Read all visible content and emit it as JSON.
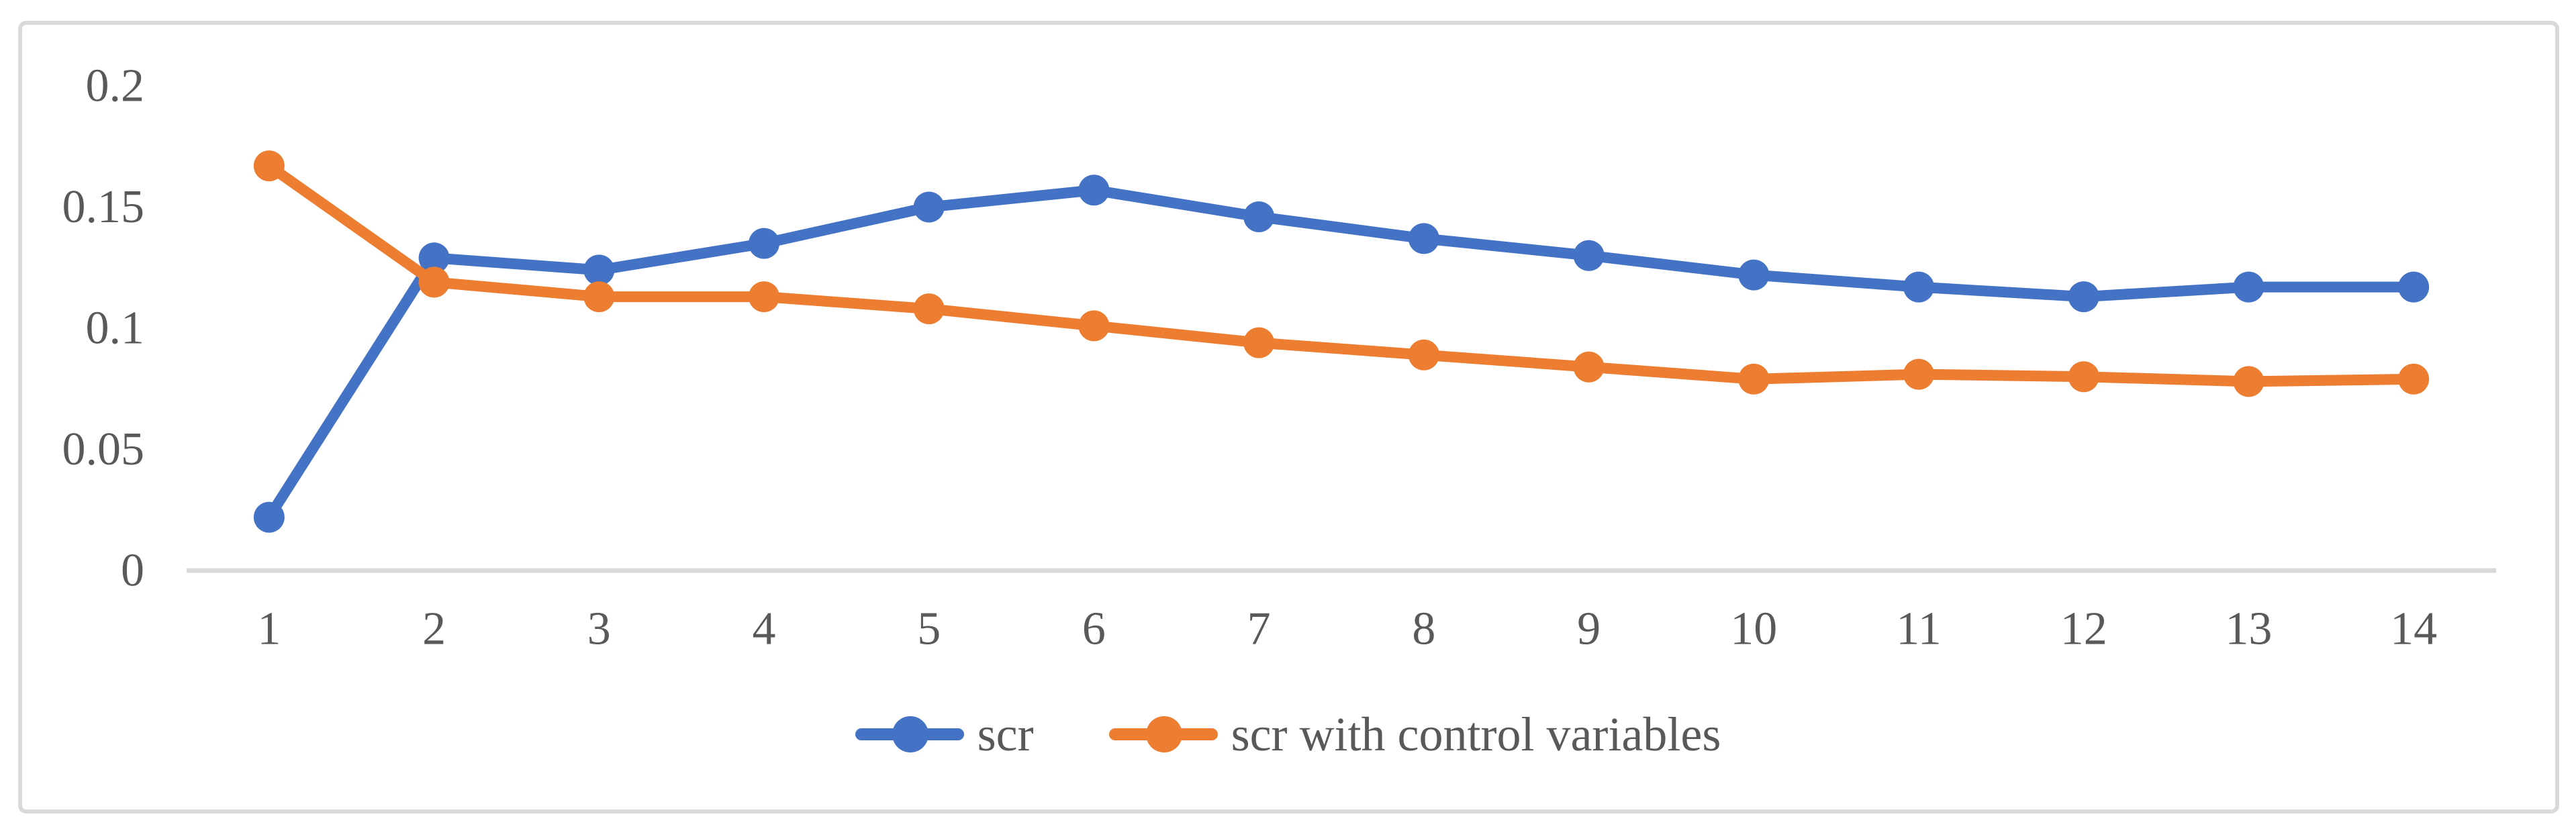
{
  "chart_data": {
    "type": "line",
    "x": [
      1,
      2,
      3,
      4,
      5,
      6,
      7,
      8,
      9,
      10,
      11,
      12,
      13,
      14
    ],
    "xtick_labels": [
      "1",
      "2",
      "3",
      "4",
      "5",
      "6",
      "7",
      "8",
      "9",
      "10",
      "11",
      "12",
      "13",
      "14"
    ],
    "series": [
      {
        "name": "scr",
        "color": "#4472C4",
        "values": [
          0.022,
          0.129,
          0.124,
          0.135,
          0.15,
          0.157,
          0.146,
          0.137,
          0.13,
          0.122,
          0.117,
          0.113,
          0.117,
          0.117
        ]
      },
      {
        "name": "scr with control variables",
        "color": "#ED7D31",
        "values": [
          0.167,
          0.119,
          0.113,
          0.113,
          0.108,
          0.101,
          0.094,
          0.089,
          0.084,
          0.079,
          0.081,
          0.08,
          0.078,
          0.079
        ]
      }
    ],
    "title": "",
    "xlabel": "",
    "ylabel": "",
    "ylim": [
      0,
      0.2
    ],
    "yticks": [
      0,
      0.05,
      0.1,
      0.15,
      0.2
    ],
    "ytick_labels": [
      "0",
      "0.05",
      "0.1",
      "0.15",
      "0.2"
    ],
    "grid": false,
    "legend_position": "bottom-center",
    "marker": "circle"
  },
  "colors": {
    "axis_line": "#D9D9D9",
    "frame_border": "#D9D9D9",
    "tick_text": "#595959",
    "background": "#FFFFFF"
  }
}
